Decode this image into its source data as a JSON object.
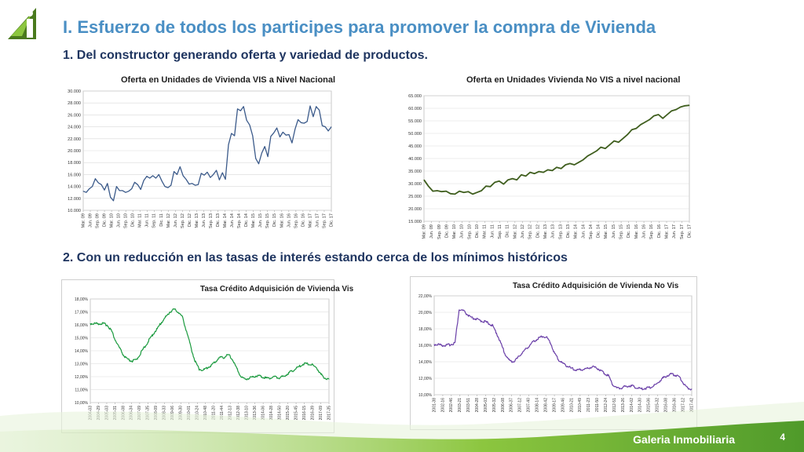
{
  "header": {
    "title": "I.  Esfuerzo de todos los participes para promover la compra de Vivienda",
    "subtitle1": "1.  Del constructor generando oferta y variedad de productos.",
    "subtitle2": "2.  Con un reducción en las  tasas de interés estando cerca de los mínimos históricos"
  },
  "footer": {
    "brand": "Galeria Inmobiliaria",
    "page": "4"
  },
  "colors": {
    "title": "#4a8fc4",
    "vis_line": "#3b5a8a",
    "novis_line": "#3f5e1e",
    "tasa_vis": "#1a9a3e",
    "tasa_novis": "#6a3fa8",
    "footer_green": "#5aa832"
  },
  "chart_data": [
    {
      "type": "line",
      "title": "Oferta  en Unidades de Vivienda VIS a Nivel Nacional",
      "ylim": [
        10000,
        30000
      ],
      "yticks": [
        "10.000",
        "12.000",
        "14.000",
        "16.000",
        "18.000",
        "20.000",
        "22.000",
        "24.000",
        "26.000",
        "28.000",
        "30.000"
      ],
      "xticks": [
        "Mar. 09",
        "Jun. 09",
        "Sep. 09",
        "Dic. 09",
        "Mar. 10",
        "Jun. 10",
        "Sep. 10",
        "Dic. 10",
        "Mar. 11",
        "Jun. 11",
        "Sep. 11",
        "Dic. 11",
        "Mar. 12",
        "Jun. 12",
        "Sep. 12",
        "Dic. 12",
        "Mar. 13",
        "Jun. 13",
        "Sep. 13",
        "Dic. 13",
        "Mar. 14",
        "Jun. 14",
        "Sep. 14",
        "Dic. 14",
        "Mar. 15",
        "Jun. 15",
        "Sep. 15",
        "Dic. 15",
        "Mar. 16",
        "Jun. 16",
        "Sep. 16",
        "Dic. 16",
        "Mar. 17",
        "Jun. 17",
        "Sep. 17",
        "Dic. 17"
      ],
      "values": [
        13200,
        13000,
        13600,
        14000,
        15300,
        14600,
        14300,
        13400,
        14500,
        12200,
        11600,
        14000,
        13300,
        13300,
        13000,
        13200,
        13600,
        14700,
        14300,
        13500,
        15000,
        15700,
        15400,
        15800,
        15400,
        16000,
        14900,
        14000,
        13800,
        14200,
        16500,
        16000,
        17300,
        15800,
        15200,
        14400,
        14500,
        14200,
        14300,
        16200,
        15900,
        16400,
        15500,
        16000,
        16700,
        15100,
        16300,
        15200,
        21000,
        22900,
        22500,
        27000,
        26700,
        27400,
        25100,
        24300,
        22500,
        18700,
        17800,
        19600,
        20700,
        19000,
        22400,
        23000,
        23800,
        22300,
        23100,
        22600,
        22700,
        21300,
        23600,
        25200,
        24700,
        24600,
        24900,
        27500,
        25700,
        27400,
        26800,
        24200,
        24000,
        23300,
        24000
      ]
    },
    {
      "type": "line",
      "title": "Oferta  en Unidades Vivienda No VIS a nivel nacional",
      "ylim": [
        15000,
        65000
      ],
      "yticks": [
        "15.000",
        "20.000",
        "25.000",
        "30.000",
        "35.000",
        "40.000",
        "45.000",
        "50.000",
        "55.000",
        "60.000",
        "65.000"
      ],
      "xticks": [
        "Mar. 09",
        "Jun. 09",
        "Sep. 09",
        "Dic. 09",
        "Mar. 10",
        "Jun. 10",
        "Sep. 10",
        "Dic. 10",
        "Mar. 11",
        "Jun. 11",
        "Sep. 11",
        "Dic. 11",
        "Mar. 12",
        "Jun. 12",
        "Sep. 12",
        "Dic. 12",
        "Mar. 13",
        "Jun. 13",
        "Sep. 13",
        "Dic. 13",
        "Mar. 14",
        "Jun. 14",
        "Sep. 14",
        "Dic. 14",
        "Mar. 15",
        "Jun. 15",
        "Sep. 15",
        "Dic. 15",
        "Mar. 16",
        "Jun. 16",
        "Sep. 16",
        "Dic. 16",
        "Mar. 17",
        "Jun. 17",
        "Sep. 17",
        "Dic. 17"
      ],
      "values": [
        31500,
        29000,
        27000,
        27200,
        26800,
        27000,
        26000,
        25800,
        27000,
        26500,
        26800,
        25800,
        26500,
        27200,
        29000,
        28800,
        30500,
        31000,
        29800,
        31500,
        32000,
        31500,
        33500,
        33000,
        34500,
        34000,
        34800,
        34500,
        35500,
        35200,
        36500,
        36000,
        37500,
        38000,
        37500,
        38500,
        39500,
        41000,
        42000,
        43000,
        44500,
        44000,
        45500,
        47000,
        46500,
        48000,
        49500,
        51500,
        52000,
        53500,
        54500,
        55500,
        57000,
        57500,
        56000,
        57500,
        59000,
        59500,
        60500,
        61000,
        61200
      ]
    },
    {
      "type": "line",
      "title": "Tasa Crédito Adquisición de Vivienda  Vis",
      "ylim": [
        10,
        18
      ],
      "yticks": [
        "10,00%",
        "11,00%",
        "12,00%",
        "13,00%",
        "14,00%",
        "15,00%",
        "16,00%",
        "17,00%",
        "18,00%"
      ],
      "xticks": [
        "2004-03",
        "2004-29",
        "2005-03",
        "2005-31",
        "2006-08",
        "2006-34",
        "2007-09",
        "2007-35",
        "2008-09",
        "2008-33",
        "2009-06",
        "2009-30",
        "2010-01",
        "2010-24",
        "2010-48",
        "2011-20",
        "2011-44",
        "2012-13",
        "2012-38",
        "2013-10",
        "2013-36",
        "2014-06",
        "2014-28",
        "2014-50",
        "2015-20",
        "2015-45",
        "2016-15",
        "2016-39",
        "2017-09",
        "2017-35"
      ],
      "values": [
        16.1,
        16.1,
        16.1,
        16.1,
        16.0,
        15.6,
        14.8,
        14.2,
        13.6,
        13.3,
        13.2,
        13.3,
        13.8,
        14.3,
        14.8,
        15.3,
        15.7,
        16.2,
        16.6,
        17.0,
        17.2,
        17.0,
        16.6,
        15.5,
        14.3,
        13.2,
        12.6,
        12.5,
        12.7,
        12.9,
        13.2,
        13.5,
        13.5,
        13.7,
        13.3,
        12.6,
        12.0,
        11.8,
        11.9,
        12.0,
        12.1,
        12.0,
        11.9,
        11.9,
        12.0,
        11.9,
        12.0,
        12.2,
        12.4,
        12.6,
        12.8,
        13.0,
        13.0,
        12.9,
        12.7,
        12.2,
        11.9,
        11.8
      ]
    },
    {
      "type": "line",
      "title": "Tasa Crédito Adquisición de Vivienda No Vis",
      "ylim": [
        10,
        22
      ],
      "yticks": [
        "10,00%",
        "12,00%",
        "14,00%",
        "16,00%",
        "18,00%",
        "20,00%",
        "22,00%"
      ],
      "xticks": [
        "2001-38",
        "2002-16",
        "2002-46",
        "2003-21",
        "2003-51",
        "2004-28",
        "2005-03",
        "2005-32",
        "2006-08",
        "2006-37",
        "2007-12",
        "2007-40",
        "2008-14",
        "2008-42",
        "2009-17",
        "2009-46",
        "2010-21",
        "2010-49",
        "2011-23",
        "2011-50",
        "2012-24",
        "2012-51",
        "2013-26",
        "2014-02",
        "2014-30",
        "2015-06",
        "2015-32",
        "2016-08",
        "2016-36",
        "2017-12",
        "2017-42"
      ],
      "values": [
        16.1,
        16.1,
        16.0,
        16.0,
        16.1,
        16.3,
        20.3,
        20.2,
        19.7,
        19.3,
        19.2,
        19.0,
        18.9,
        18.7,
        18.4,
        17.5,
        16.3,
        15.0,
        14.2,
        14.0,
        14.4,
        15.0,
        15.5,
        16.0,
        16.5,
        16.8,
        17.1,
        17.0,
        16.3,
        15.0,
        14.2,
        13.8,
        13.5,
        13.2,
        13.0,
        13.0,
        13.1,
        13.2,
        13.4,
        13.3,
        13.0,
        12.6,
        12.3,
        11.2,
        10.8,
        10.8,
        11.0,
        11.1,
        11.0,
        10.8,
        10.7,
        10.8,
        10.9,
        11.1,
        11.5,
        12.0,
        12.3,
        12.5,
        12.4,
        12.2,
        11.4,
        10.8,
        10.7
      ]
    }
  ]
}
